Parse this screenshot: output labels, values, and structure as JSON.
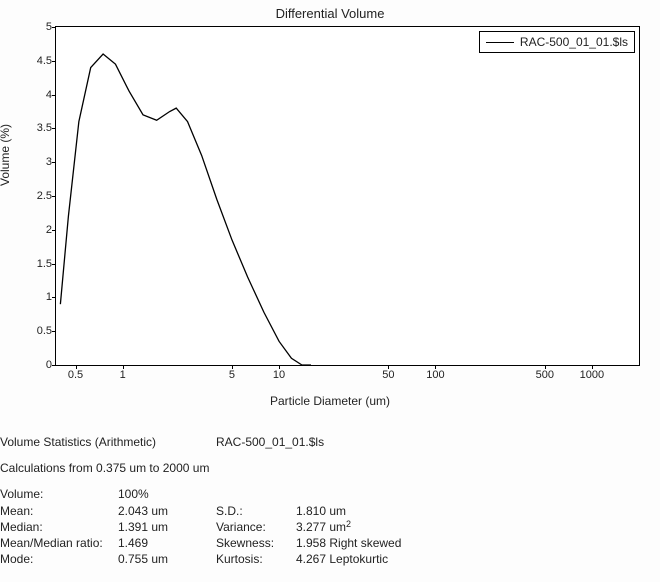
{
  "chart": {
    "type": "line",
    "title": "Differential Volume",
    "x_label": "Particle Diameter (um)",
    "y_label": "Volume (%)",
    "background_color": "#ffffff",
    "axis_color": "#000000",
    "line_color": "#000000",
    "line_width": 1.3,
    "font_family": "Arial",
    "title_fontsize": 13,
    "label_fontsize": 12,
    "tick_fontsize": 11,
    "x_scale": "log",
    "xlim": [
      0.375,
      2000
    ],
    "ylim": [
      0,
      5
    ],
    "y_ticks": [
      0,
      0.5,
      1,
      1.5,
      2,
      2.5,
      3,
      3.5,
      4,
      4.5,
      5
    ],
    "x_ticks": [
      0.5,
      1,
      5,
      10,
      50,
      100,
      500,
      1000
    ],
    "legend": {
      "position": "top-right",
      "border_color": "#000000",
      "items": [
        {
          "label": "RAC-500_01_01.$ls",
          "color": "#000000"
        }
      ]
    },
    "series": [
      {
        "name": "RAC-500_01_01.$ls",
        "color": "#000000",
        "points": [
          [
            0.4,
            0.9
          ],
          [
            0.45,
            2.2
          ],
          [
            0.525,
            3.6
          ],
          [
            0.625,
            4.4
          ],
          [
            0.75,
            4.6
          ],
          [
            0.9,
            4.45
          ],
          [
            1.1,
            4.05
          ],
          [
            1.35,
            3.7
          ],
          [
            1.65,
            3.62
          ],
          [
            2.0,
            3.75
          ],
          [
            2.2,
            3.8
          ],
          [
            2.6,
            3.6
          ],
          [
            3.2,
            3.1
          ],
          [
            4.0,
            2.45
          ],
          [
            5.0,
            1.85
          ],
          [
            6.3,
            1.3
          ],
          [
            8.0,
            0.78
          ],
          [
            10.0,
            0.35
          ],
          [
            12.0,
            0.1
          ],
          [
            14.0,
            0.0
          ],
          [
            16.0,
            0.0
          ]
        ]
      }
    ]
  },
  "stats": {
    "header_label": "Volume Statistics (Arithmetic)",
    "header_file": "RAC-500_01_01.$ls",
    "calc_range": "Calculations from 0.375 um to 2000 um",
    "rows": [
      {
        "l": "Volume:",
        "v": "100%",
        "l2": "",
        "v2": ""
      },
      {
        "l": "Mean:",
        "v": "2.043 um",
        "l2": "S.D.:",
        "v2": "1.810 um"
      },
      {
        "l": "Median:",
        "v": "1.391 um",
        "l2": "Variance:",
        "v2": "3.277 um²"
      },
      {
        "l": "Mean/Median ratio:",
        "v": "1.469",
        "l2": "Skewness:",
        "v2": "1.958 Right skewed"
      },
      {
        "l": "Mode:",
        "v": "0.755 um",
        "l2": "Kurtosis:",
        "v2": "4.267 Leptokurtic"
      }
    ]
  }
}
